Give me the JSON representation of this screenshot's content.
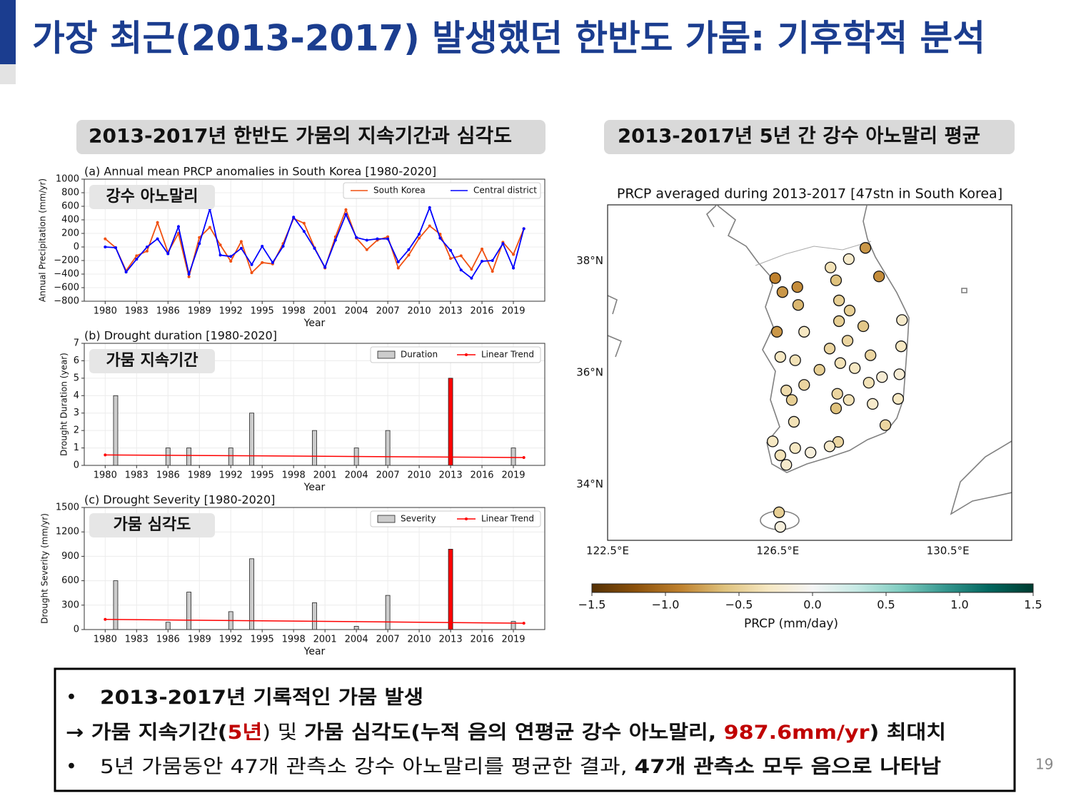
{
  "title": "가장 최근(2013-2017) 발생했던 한반도 가뭄: 기후학적 분석",
  "headers": [
    "2013-2017년 한반도 가뭄의 지속기간과 심각도",
    "2013-2017년 5년 간 강수 아노말리 평균"
  ],
  "page_number": 19,
  "summary": [
    {
      "bullet": "•",
      "segments": [
        {
          "text": "2013-2017년 기록적인 가뭄 발생",
          "bold": true
        }
      ]
    },
    {
      "segments": [
        {
          "text": "→ 가뭄 지속기간(",
          "bold": true
        },
        {
          "text": "5년",
          "bold": true,
          "color": "#c00000"
        },
        {
          "text": ") 및 "
        },
        {
          "text": "가뭄 심각도",
          "bold": true
        },
        {
          "text": "(누적 음의 연평균 강수 아노말리, ",
          "bold": true
        },
        {
          "text": "987.6mm/yr",
          "bold": true,
          "color": "#c00000"
        },
        {
          "text": ") 최대치",
          "bold": true
        }
      ]
    },
    {
      "bullet": "•",
      "segments": [
        {
          "text": "5년 가뭄동안 47개 관측소 강수 아노말리를 평균한 결과, "
        },
        {
          "text": "47개 관측소 모두 음으로 나타남",
          "bold": true
        }
      ]
    }
  ],
  "chart_data": [
    {
      "type": "line",
      "title": "(a) Annual mean PRCP anomalies in South Korea [1980-2020]",
      "annotation": "강수 아노말리",
      "xlabel": "Year",
      "ylabel": "Annual Precipitation (mm/yr)",
      "x": [
        1980,
        1981,
        1982,
        1983,
        1984,
        1985,
        1986,
        1987,
        1988,
        1989,
        1990,
        1991,
        1992,
        1993,
        1994,
        1995,
        1996,
        1997,
        1998,
        1999,
        2000,
        2001,
        2002,
        2003,
        2004,
        2005,
        2006,
        2007,
        2008,
        2009,
        2010,
        2011,
        2012,
        2013,
        2014,
        2015,
        2016,
        2017,
        2018,
        2019,
        2020
      ],
      "series": [
        {
          "name": "South Korea",
          "color": "#f05010",
          "values": [
            120,
            -10,
            -350,
            -130,
            -60,
            360,
            -80,
            200,
            -440,
            140,
            290,
            30,
            -210,
            80,
            -380,
            -230,
            -250,
            50,
            420,
            350,
            -10,
            -310,
            150,
            550,
            130,
            -40,
            100,
            150,
            -310,
            -120,
            130,
            310,
            190,
            -170,
            -130,
            -330,
            -30,
            -360,
            70,
            -110,
            270
          ]
        },
        {
          "name": "Central district",
          "color": "#0000ff",
          "values": [
            0,
            -10,
            -370,
            -180,
            0,
            120,
            -100,
            300,
            -400,
            50,
            560,
            -120,
            -140,
            -20,
            -260,
            10,
            -230,
            10,
            440,
            230,
            -20,
            -300,
            100,
            480,
            140,
            100,
            120,
            120,
            -220,
            -40,
            190,
            580,
            130,
            -50,
            -340,
            -460,
            -210,
            -200,
            50,
            -310,
            270
          ]
        }
      ],
      "xlim": [
        1978,
        2022
      ],
      "xticks": [
        1980,
        1983,
        1986,
        1989,
        1992,
        1995,
        1998,
        2001,
        2004,
        2007,
        2010,
        2013,
        2016,
        2019
      ],
      "ylim": [
        -800,
        1000
      ],
      "yticks": [
        {
          "value": -800,
          "label": "−800"
        },
        {
          "value": -600,
          "label": "−600"
        },
        {
          "value": -400,
          "label": "−400"
        },
        {
          "value": -200,
          "label": "−200"
        },
        0,
        200,
        400,
        600,
        800,
        1000
      ],
      "grid": true,
      "legend": "upper right"
    },
    {
      "type": "bar",
      "title": "(b) Drought duration [1980-2020]",
      "annotation": "가뭄 지속기간",
      "xlabel": "Year",
      "ylabel": "Drought Duration (year)",
      "bar_name": "Duration",
      "legend_color": "#cccccc",
      "x": [
        1981,
        1986,
        1988,
        1992,
        1994,
        2000,
        2004,
        2007,
        2013,
        2019
      ],
      "values": [
        4,
        1,
        1,
        1,
        3,
        2,
        1,
        2,
        5,
        1
      ],
      "colors": [
        "#cccccc",
        "#cccccc",
        "#cccccc",
        "#cccccc",
        "#cccccc",
        "#cccccc",
        "#cccccc",
        "#cccccc",
        "#ff0000",
        "#cccccc"
      ],
      "trend": {
        "name": "Linear Trend",
        "color": "#ff0000",
        "x": [
          1980,
          2020
        ],
        "values": [
          0.6,
          0.45
        ]
      },
      "xlim": [
        1978,
        2022
      ],
      "xticks": [
        1980,
        1983,
        1986,
        1989,
        1992,
        1995,
        1998,
        2001,
        2004,
        2007,
        2010,
        2013,
        2016,
        2019
      ],
      "ylim": [
        0,
        7
      ],
      "yticks": [
        0,
        1,
        2,
        3,
        4,
        5,
        6,
        7
      ],
      "grid": true,
      "legend": "upper right"
    },
    {
      "type": "bar",
      "title": "(c) Drought Severity [1980-2020]",
      "annotation": "가뭄 심각도",
      "xlabel": "Year",
      "ylabel": "Drought Severity (mm/yr)",
      "bar_name": "Severity",
      "legend_color": "#cccccc",
      "x": [
        1981,
        1986,
        1988,
        1992,
        1994,
        2000,
        2004,
        2007,
        2013,
        2019
      ],
      "values": [
        600,
        90,
        460,
        220,
        870,
        330,
        40,
        420,
        987.6,
        100
      ],
      "colors": [
        "#cccccc",
        "#cccccc",
        "#cccccc",
        "#cccccc",
        "#cccccc",
        "#cccccc",
        "#cccccc",
        "#cccccc",
        "#ff0000",
        "#cccccc"
      ],
      "trend": {
        "name": "Linear Trend",
        "color": "#ff0000",
        "x": [
          1980,
          2020
        ],
        "values": [
          125,
          78
        ]
      },
      "xlim": [
        1978,
        2022
      ],
      "xticks": [
        1980,
        1983,
        1986,
        1989,
        1992,
        1995,
        1998,
        2001,
        2004,
        2007,
        2010,
        2013,
        2016,
        2019
      ],
      "ylim": [
        0,
        1500
      ],
      "yticks": [
        0,
        300,
        600,
        900,
        1200,
        1500
      ],
      "grid": true,
      "legend": "upper right"
    },
    {
      "type": "scatter",
      "title": "PRCP averaged during 2013-2017 [47stn in South Korea]",
      "x": [
        128.56,
        128.17,
        127.74,
        128.88,
        126.44,
        127.87,
        126.96,
        126.61,
        127.94,
        126.98,
        128.19,
        129.42,
        127.94,
        128.51,
        126.48,
        127.12,
        128.14,
        129.4,
        127.72,
        126.56,
        128.68,
        126.91,
        127.97,
        128.31,
        127.48,
        129.36,
        128.95,
        128.64,
        127.12,
        126.7,
        127.9,
        128.17,
        126.83,
        129.33,
        128.73,
        127.87,
        126.88,
        129.03,
        126.38,
        127.92,
        127.72,
        126.91,
        126.56,
        127.27,
        126.7,
        126.53,
        126.56
      ],
      "y": [
        38.23,
        38.03,
        37.88,
        37.72,
        37.69,
        37.65,
        37.53,
        37.44,
        37.29,
        37.21,
        37.11,
        36.94,
        36.92,
        36.83,
        36.73,
        36.73,
        36.57,
        36.47,
        36.43,
        36.28,
        36.31,
        36.22,
        36.17,
        36.08,
        36.05,
        35.97,
        35.92,
        35.82,
        35.78,
        35.68,
        35.62,
        35.51,
        35.51,
        35.53,
        35.44,
        35.36,
        35.12,
        35.06,
        34.77,
        34.76,
        34.68,
        34.65,
        34.52,
        34.57,
        34.35,
        33.5,
        33.24
      ],
      "values": [
        -0.8,
        -0.25,
        -0.35,
        -0.85,
        -0.9,
        -0.6,
        -0.85,
        -0.8,
        -0.5,
        -0.65,
        -0.5,
        -0.25,
        -0.5,
        -0.55,
        -0.8,
        -0.3,
        -0.45,
        -0.3,
        -0.45,
        -0.3,
        -0.45,
        -0.35,
        -0.35,
        -0.3,
        -0.5,
        -0.2,
        -0.2,
        -0.35,
        -0.45,
        -0.4,
        -0.45,
        -0.35,
        -0.5,
        -0.3,
        -0.25,
        -0.6,
        -0.35,
        -0.45,
        -0.3,
        -0.45,
        -0.25,
        -0.3,
        -0.35,
        -0.15,
        -0.25,
        -0.5,
        -0.15
      ],
      "xlim": [
        122.5,
        132
      ],
      "xticks": [
        {
          "value": 122.5,
          "label": "122.5°E"
        },
        {
          "value": 126.5,
          "label": "126.5°E"
        },
        {
          "value": 130.5,
          "label": "130.5°E"
        }
      ],
      "ylim": [
        33,
        39
      ],
      "yticks": [
        {
          "value": 34,
          "label": "34°N"
        },
        {
          "value": 36,
          "label": "36°N"
        },
        {
          "value": 38,
          "label": "38°N"
        }
      ],
      "colormap": "BrBG",
      "clim": [
        -1.5,
        1.5
      ],
      "colorbar_label": "PRCP (mm/day)",
      "cticks": [
        {
          "value": -1.5,
          "label": "−1.5"
        },
        {
          "value": -1.0,
          "label": "−1.0"
        },
        {
          "value": -0.5,
          "label": "−0.5"
        },
        {
          "value": 0,
          "label": "0.0"
        },
        0.5,
        {
          "value": 1,
          "label": "1.0"
        },
        1.5
      ]
    }
  ]
}
